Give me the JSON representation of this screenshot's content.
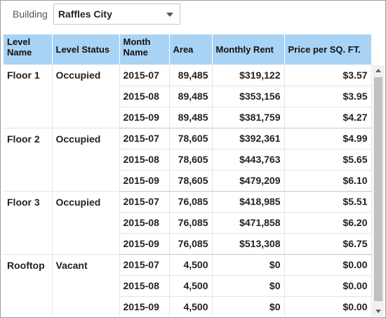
{
  "filter": {
    "label": "Building",
    "selected": "Raffles City",
    "caret_icon": "chevron-down-icon"
  },
  "columns": [
    "Level Name",
    "Level Status",
    "Month Name",
    "Area",
    "Monthly Rent",
    "Price per SQ. FT."
  ],
  "groups": [
    {
      "level": "Floor 1",
      "status": "Occupied",
      "rows": [
        {
          "month": "2015-07",
          "area": "89,485",
          "rent": "$319,122",
          "price": "$3.57"
        },
        {
          "month": "2015-08",
          "area": "89,485",
          "rent": "$353,156",
          "price": "$3.95"
        },
        {
          "month": "2015-09",
          "area": "89,485",
          "rent": "$381,759",
          "price": "$4.27"
        }
      ]
    },
    {
      "level": "Floor 2",
      "status": "Occupied",
      "rows": [
        {
          "month": "2015-07",
          "area": "78,605",
          "rent": "$392,361",
          "price": "$4.99"
        },
        {
          "month": "2015-08",
          "area": "78,605",
          "rent": "$443,763",
          "price": "$5.65"
        },
        {
          "month": "2015-09",
          "area": "78,605",
          "rent": "$479,209",
          "price": "$6.10"
        }
      ]
    },
    {
      "level": "Floor 3",
      "status": "Occupied",
      "rows": [
        {
          "month": "2015-07",
          "area": "76,085",
          "rent": "$418,985",
          "price": "$5.51"
        },
        {
          "month": "2015-08",
          "area": "76,085",
          "rent": "$471,858",
          "price": "$6.20"
        },
        {
          "month": "2015-09",
          "area": "76,085",
          "rent": "$513,308",
          "price": "$6.75"
        }
      ]
    },
    {
      "level": "Rooftop",
      "status": "Vacant",
      "rows": [
        {
          "month": "2015-07",
          "area": "4,500",
          "rent": "$0",
          "price": "$0.00"
        },
        {
          "month": "2015-08",
          "area": "4,500",
          "rent": "$0",
          "price": "$0.00"
        },
        {
          "month": "2015-09",
          "area": "4,500",
          "rent": "$0",
          "price": "$0.00"
        }
      ]
    }
  ],
  "scrollbar": {
    "up_icon": "arrow-up-icon",
    "down_icon": "arrow-down-icon"
  }
}
